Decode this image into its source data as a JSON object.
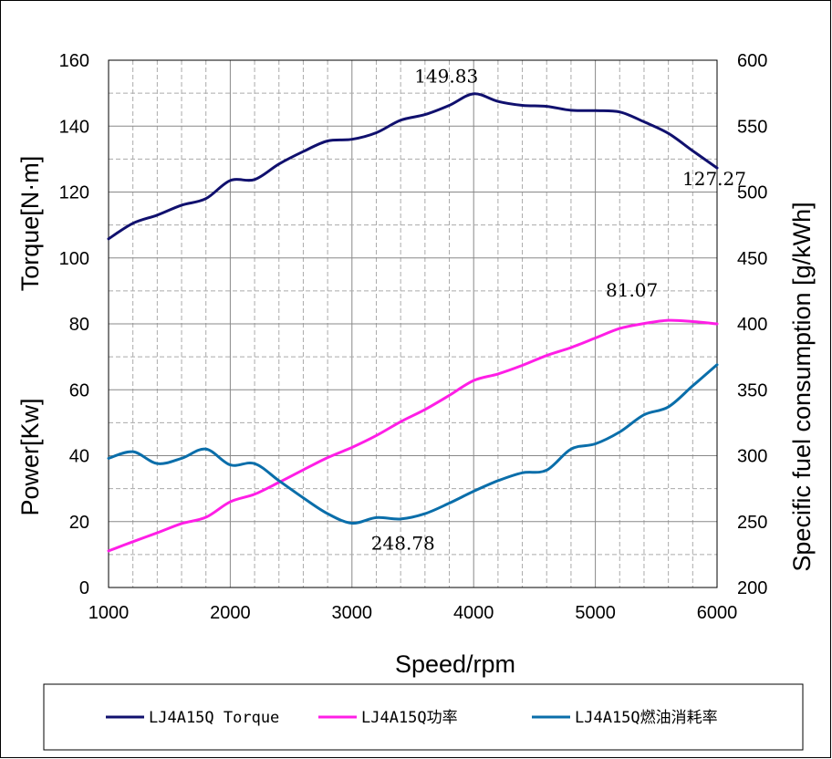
{
  "chart_data": {
    "type": "line",
    "xlabel": "Speed/rpm",
    "ylabel_left_top": "Torque[N·m]",
    "ylabel_left_bottom": "Power[Kw]",
    "ylabel_right": "Specific fuel consumption [g/kWh]",
    "xlim": [
      1000,
      6000
    ],
    "x_ticks": [
      "1000",
      "2000",
      "3000",
      "4000",
      "5000",
      "6000"
    ],
    "ylim_left": [
      0,
      160
    ],
    "y_left_ticks": [
      "0",
      "20",
      "40",
      "60",
      "80",
      "100",
      "120",
      "140",
      "160"
    ],
    "ylim_right": [
      200,
      600
    ],
    "y_right_ticks": [
      "200",
      "250",
      "300",
      "350",
      "400",
      "450",
      "500",
      "550",
      "600"
    ],
    "grid": true,
    "legend_position": "bottom",
    "series": [
      {
        "name": "LJ4A15Q Torque",
        "axis": "left",
        "color": "#10106e",
        "x": [
          1000,
          1200,
          1400,
          1600,
          1800,
          2000,
          2200,
          2400,
          2600,
          2800,
          3000,
          3200,
          3400,
          3600,
          3800,
          4000,
          4200,
          4400,
          4600,
          4800,
          5000,
          5200,
          5400,
          5600,
          5800,
          6000
        ],
        "y": [
          105.8,
          110.5,
          113.0,
          116.0,
          118.0,
          123.5,
          123.8,
          128.5,
          132.3,
          135.5,
          136.0,
          138.0,
          141.8,
          143.5,
          146.3,
          149.8,
          147.5,
          146.3,
          146.0,
          144.8,
          144.7,
          144.3,
          141.3,
          137.8,
          132.5,
          127.3
        ]
      },
      {
        "name": "LJ4A15Q功率",
        "axis": "left",
        "color": "#ff1ee6",
        "x": [
          1000,
          1200,
          1400,
          1600,
          1800,
          2000,
          2200,
          2400,
          2600,
          2800,
          3000,
          3200,
          3400,
          3600,
          3800,
          4000,
          4200,
          4400,
          4600,
          4800,
          5000,
          5200,
          5400,
          5600,
          5800,
          6000
        ],
        "y": [
          11.1,
          13.9,
          16.6,
          19.4,
          21.3,
          26.0,
          28.3,
          31.9,
          35.7,
          39.4,
          42.5,
          46.1,
          50.3,
          54.0,
          58.3,
          62.8,
          64.8,
          67.4,
          70.4,
          72.8,
          75.7,
          78.6,
          80.1,
          81.07,
          80.7,
          80.0
        ]
      },
      {
        "name": "LJ4A15Q燃油消耗率",
        "axis": "right",
        "color": "#0a6eaa",
        "x": [
          1000,
          1200,
          1400,
          1600,
          1800,
          2000,
          2200,
          2400,
          2600,
          2800,
          3000,
          3200,
          3400,
          3600,
          3800,
          4000,
          4200,
          4400,
          4600,
          4800,
          5000,
          5200,
          5400,
          5600,
          5800,
          6000
        ],
        "y": [
          298,
          303,
          294,
          298,
          305,
          293,
          294,
          281,
          268,
          256,
          248.78,
          253,
          252,
          256,
          264,
          273,
          281,
          287,
          289,
          305,
          309,
          318,
          331,
          337,
          353,
          369
        ]
      }
    ],
    "annotations": [
      {
        "text": "149.83",
        "series": 0,
        "x": 4000,
        "y": 149.83
      },
      {
        "text": "127.27",
        "series": 0,
        "x": 6000,
        "y": 127.27
      },
      {
        "text": "81.07",
        "series": 1,
        "x": 5600,
        "y": 81.07
      },
      {
        "text": "248.78",
        "series": 2,
        "x": 3000,
        "y": 248.78
      }
    ]
  }
}
